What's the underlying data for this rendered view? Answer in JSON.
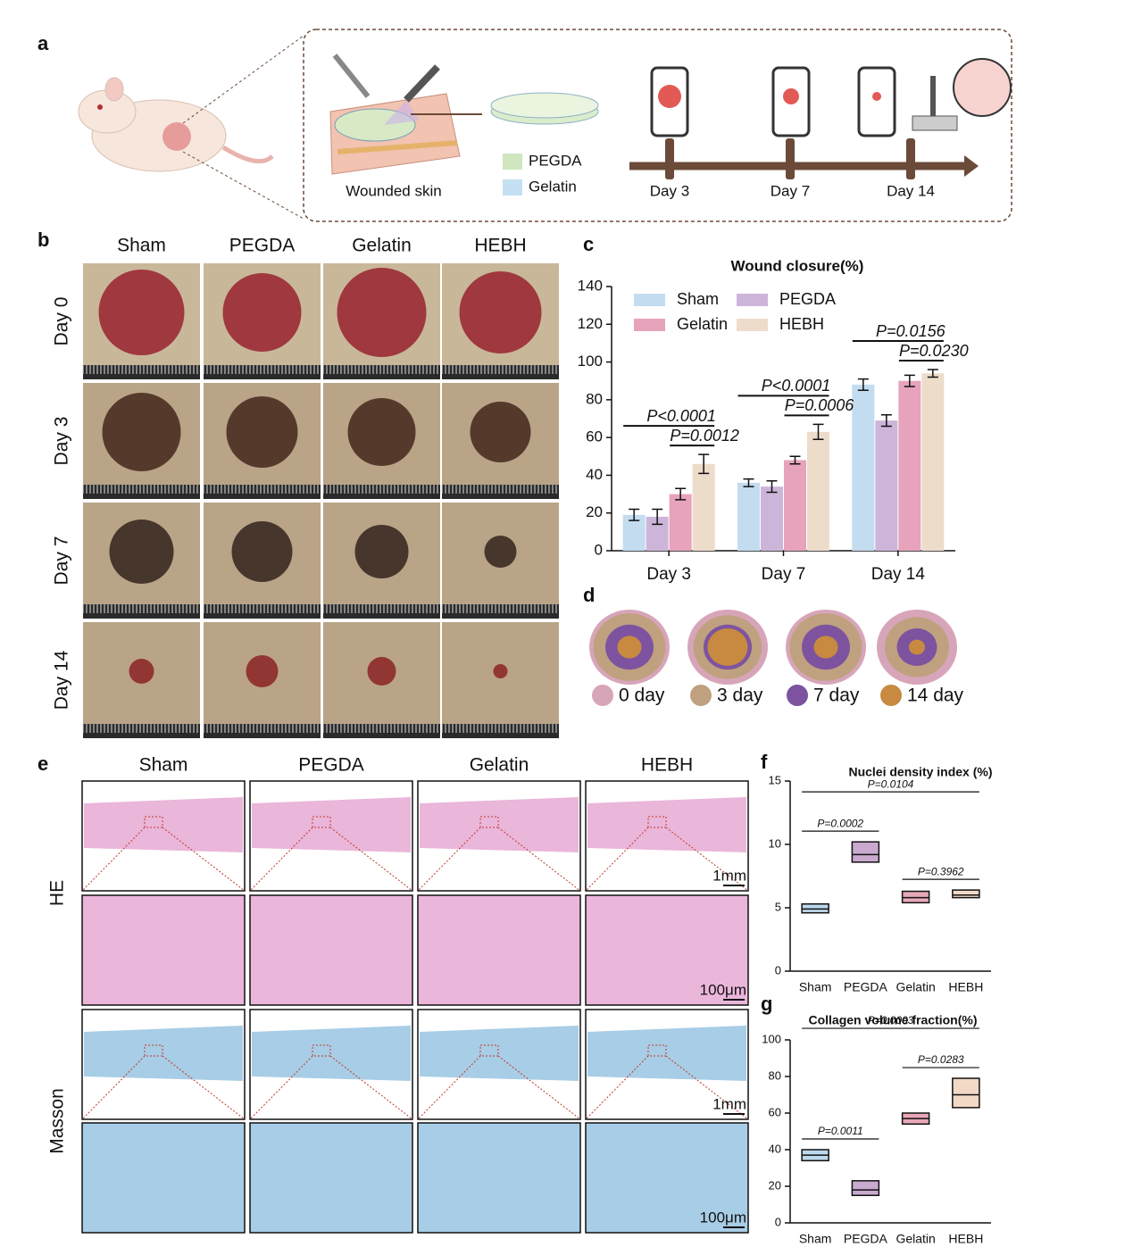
{
  "panel_labels": [
    "a",
    "b",
    "c",
    "d",
    "e",
    "f",
    "g"
  ],
  "schematic": {
    "wound_label": "Wounded skin",
    "materials": [
      "PEGDA",
      "Gelatin"
    ],
    "material_colors": [
      "#cfe6bf",
      "#c5e0f2"
    ],
    "timeline": [
      "Day 3",
      "Day 7",
      "Day 14"
    ]
  },
  "photos": {
    "columns": [
      "Sham",
      "PEGDA",
      "Gelatin",
      "HEBH"
    ],
    "rows": [
      "Day 0",
      "Day 3",
      "Day 7",
      "Day 14"
    ]
  },
  "traces": {
    "legend": [
      "0 day",
      "3 day",
      "7 day",
      "14 day"
    ],
    "colors": [
      "#d7a5b9",
      "#bfa17f",
      "#7d53a0",
      "#c78a40"
    ]
  },
  "histology": {
    "columns": [
      "Sham",
      "PEGDA",
      "Gelatin",
      "HEBH"
    ],
    "rows": [
      "HE",
      "Masson"
    ],
    "scale_bars": [
      "1mm",
      "100μm"
    ]
  },
  "chart_data": [
    {
      "type": "bar",
      "title": "Wound closure(%)",
      "categories": [
        "Day 3",
        "Day 7",
        "Day 14"
      ],
      "series": [
        {
          "name": "Sham",
          "color": "#c3dcef",
          "values": [
            19,
            36,
            88
          ],
          "errors": [
            3,
            2,
            3
          ]
        },
        {
          "name": "PEGDA",
          "color": "#cdb5da",
          "values": [
            18,
            34,
            69
          ],
          "errors": [
            4,
            3,
            3
          ]
        },
        {
          "name": "Gelatin",
          "color": "#e7a3bc",
          "values": [
            30,
            48,
            90
          ],
          "errors": [
            3,
            2,
            3
          ]
        },
        {
          "name": "HEBH",
          "color": "#eedccb",
          "values": [
            46,
            63,
            94
          ],
          "errors": [
            5,
            4,
            2
          ]
        }
      ],
      "annotations": [
        {
          "text": "P<0.0001",
          "category": 0,
          "series": [
            0,
            3
          ]
        },
        {
          "text": "P=0.0012",
          "category": 0,
          "series": [
            2,
            3
          ]
        },
        {
          "text": "P<0.0001",
          "category": 1,
          "series": [
            0,
            3
          ]
        },
        {
          "text": "P=0.0006",
          "category": 1,
          "series": [
            2,
            3
          ]
        },
        {
          "text": "P=0.0156",
          "category": 2,
          "series": [
            0,
            3
          ]
        },
        {
          "text": "P=0.0230",
          "category": 2,
          "series": [
            2,
            3
          ]
        }
      ],
      "ylim": [
        0,
        140
      ],
      "yticks": [
        0,
        20,
        40,
        60,
        80,
        100,
        120,
        140
      ],
      "grid": false
    },
    {
      "type": "box",
      "title": "Nuclei density index (%)",
      "categories": [
        "Sham",
        "PEGDA",
        "Gelatin",
        "HEBH"
      ],
      "colors": [
        "#bcd8ec",
        "#c9a9cf",
        "#e8a8b8",
        "#f2d9c6"
      ],
      "q1": [
        4.6,
        8.6,
        5.4,
        5.8
      ],
      "median": [
        4.9,
        9.2,
        5.8,
        6.0
      ],
      "q3": [
        5.3,
        10.2,
        6.3,
        6.4
      ],
      "annotations": [
        {
          "text": "P=0.0002",
          "categories": [
            0,
            1
          ]
        },
        {
          "text": "P=0.0104",
          "categories": [
            0,
            3
          ]
        },
        {
          "text": "P=0.3962",
          "categories": [
            2,
            3
          ]
        }
      ],
      "ylim": [
        0,
        15
      ],
      "yticks": [
        0,
        5,
        10,
        15
      ],
      "grid": false
    },
    {
      "type": "box",
      "title": "Collagen volume fraction(%)",
      "categories": [
        "Sham",
        "PEGDA",
        "Gelatin",
        "HEBH"
      ],
      "colors": [
        "#bcd8ec",
        "#c9a9cf",
        "#e8a8b8",
        "#f2d9c6"
      ],
      "q1": [
        34,
        15,
        54,
        63
      ],
      "median": [
        37,
        18,
        57,
        70
      ],
      "q3": [
        40,
        23,
        60,
        79
      ],
      "annotations": [
        {
          "text": "P=0.0011",
          "categories": [
            0,
            1
          ]
        },
        {
          "text": "P=0.0003",
          "categories": [
            0,
            3
          ]
        },
        {
          "text": "P=0.0283",
          "categories": [
            2,
            3
          ]
        }
      ],
      "ylim": [
        0,
        100
      ],
      "yticks": [
        0,
        20,
        40,
        60,
        80,
        100
      ],
      "grid": false
    }
  ]
}
